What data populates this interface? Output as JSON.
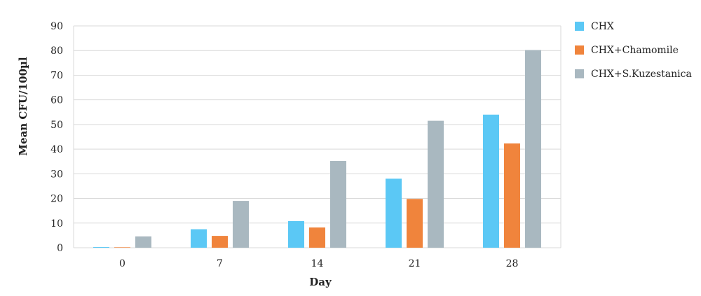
{
  "chart_data": {
    "type": "bar",
    "title": "",
    "xlabel": "Day",
    "ylabel": "Mean CFU/100µl",
    "categories": [
      "0",
      "7",
      "14",
      "21",
      "28"
    ],
    "ylim": [
      0,
      90
    ],
    "yticks": [
      0,
      10,
      20,
      30,
      40,
      50,
      60,
      70,
      80,
      90
    ],
    "grid": true,
    "legend_position": "right",
    "series": [
      {
        "name": "CHX",
        "color": "#5BC8F5",
        "values": [
          0.3,
          7.5,
          10.8,
          28,
          54
        ]
      },
      {
        "name": "CHX+Chamomile",
        "color": "#F0843C",
        "values": [
          0.2,
          4.8,
          8.2,
          19.8,
          42.3
        ]
      },
      {
        "name": "CHX+S.Kuzestanica",
        "color": "#A9B8C0",
        "values": [
          4.6,
          19,
          35.2,
          51.5,
          80.2
        ]
      }
    ]
  }
}
